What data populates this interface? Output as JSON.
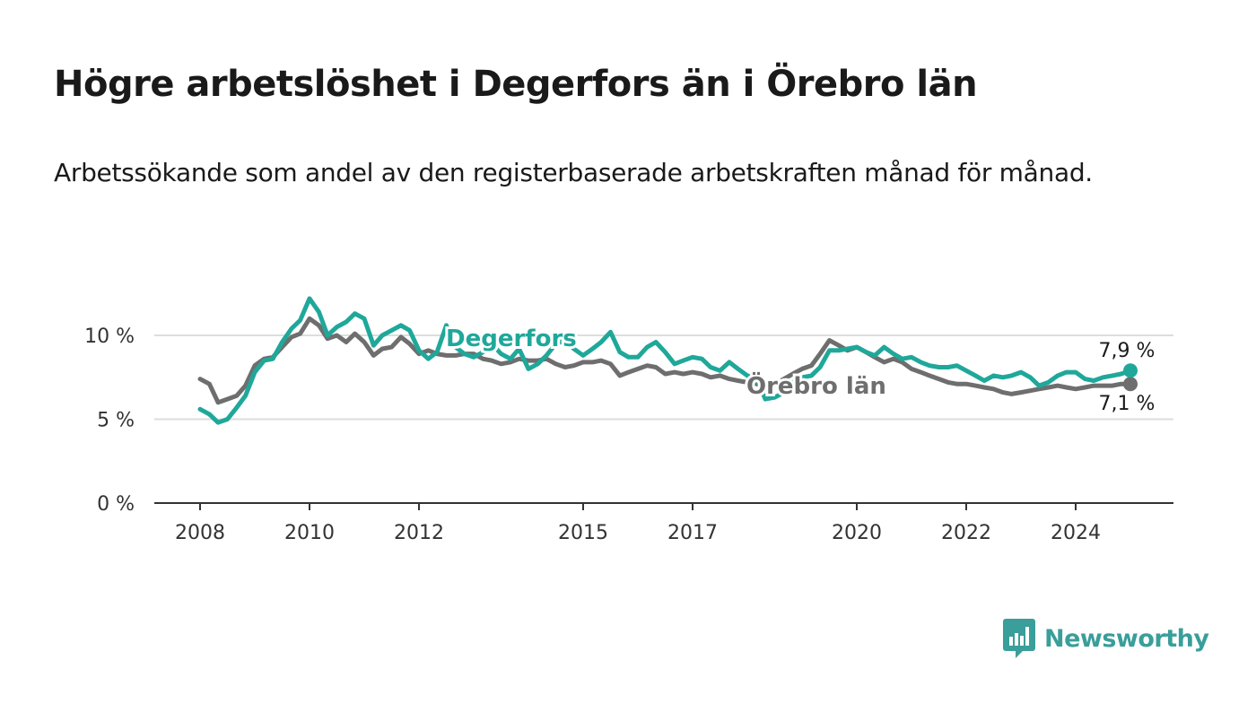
{
  "title": "Högre arbetslöshet i Degerfors än i Örebro län",
  "subtitle": "Arbetssökande som andel av den registerbaserade arbetskraften månad för månad.",
  "brand": {
    "name": "Newsworthy",
    "icon": "bar-chart-logo-icon",
    "color": "#3a9e9a"
  },
  "chart_data": {
    "type": "line",
    "title": "Högre arbetslöshet i Degerfors än i Örebro län",
    "xlabel": "",
    "ylabel": "",
    "ylim": [
      0,
      11
    ],
    "xlim": [
      2007.7,
      2026.5
    ],
    "yticks": [
      0,
      5,
      10
    ],
    "ytick_labels": [
      "0 %",
      "5 %",
      "10 %"
    ],
    "xticks": [
      2008,
      2010,
      2012,
      2015,
      2017,
      2020,
      2022,
      2024
    ],
    "xtick_labels": [
      "2008",
      "2010",
      "2012",
      "2015",
      "2017",
      "2020",
      "2022",
      "2024"
    ],
    "grid": true,
    "series": [
      {
        "name": "Örebro län",
        "color": "#6e6e6e",
        "end_label": "7,1 %",
        "x": [
          2008.0,
          2008.17,
          2008.33,
          2008.5,
          2008.67,
          2008.83,
          2009.0,
          2009.17,
          2009.33,
          2009.5,
          2009.67,
          2009.83,
          2010.0,
          2010.17,
          2010.33,
          2010.5,
          2010.67,
          2010.83,
          2011.0,
          2011.17,
          2011.33,
          2011.5,
          2011.67,
          2011.83,
          2012.0,
          2012.17,
          2012.33,
          2012.5,
          2012.67,
          2012.83,
          2013.0,
          2013.17,
          2013.33,
          2013.5,
          2013.67,
          2013.83,
          2014.0,
          2014.17,
          2014.33,
          2014.5,
          2014.67,
          2014.83,
          2015.0,
          2015.17,
          2015.33,
          2015.5,
          2015.67,
          2015.83,
          2016.0,
          2016.17,
          2016.33,
          2016.5,
          2016.67,
          2016.83,
          2017.0,
          2017.17,
          2017.33,
          2017.5,
          2017.67,
          2017.83,
          2018.0,
          2018.17,
          2018.33,
          2018.5,
          2018.67,
          2018.83,
          2019.0,
          2019.17,
          2019.33,
          2019.5,
          2019.67,
          2019.83,
          2020.0,
          2020.17,
          2020.33,
          2020.5,
          2020.67,
          2020.83,
          2021.0,
          2021.17,
          2021.33,
          2021.5,
          2021.67,
          2021.83,
          2022.0,
          2022.17,
          2022.33,
          2022.5,
          2022.67,
          2022.83,
          2023.0,
          2023.17,
          2023.33,
          2023.5,
          2023.67,
          2023.83,
          2024.0,
          2024.17,
          2024.33,
          2024.5,
          2024.67,
          2024.83,
          2025.0
        ],
        "values": [
          7.4,
          7.1,
          6.0,
          6.2,
          6.4,
          7.0,
          8.2,
          8.6,
          8.7,
          9.3,
          9.9,
          10.1,
          11.0,
          10.6,
          9.8,
          10.0,
          9.6,
          10.1,
          9.6,
          8.8,
          9.2,
          9.3,
          9.9,
          9.5,
          8.9,
          9.1,
          8.9,
          8.8,
          8.8,
          8.9,
          8.9,
          8.6,
          8.5,
          8.3,
          8.4,
          8.6,
          8.5,
          8.5,
          8.6,
          8.3,
          8.1,
          8.2,
          8.4,
          8.4,
          8.5,
          8.3,
          7.6,
          7.8,
          8.0,
          8.2,
          8.1,
          7.7,
          7.8,
          7.7,
          7.8,
          7.7,
          7.5,
          7.6,
          7.4,
          7.3,
          7.2,
          7.1,
          7.0,
          7.1,
          7.4,
          7.7,
          8.0,
          8.2,
          8.9,
          9.7,
          9.4,
          9.1,
          9.3,
          9.0,
          8.7,
          8.4,
          8.6,
          8.4,
          8.0,
          7.8,
          7.6,
          7.4,
          7.2,
          7.1,
          7.1,
          7.0,
          6.9,
          6.8,
          6.6,
          6.5,
          6.6,
          6.7,
          6.8,
          6.9,
          7.0,
          6.9,
          6.8,
          6.9,
          7.0,
          7.0,
          7.0,
          7.1,
          7.1
        ]
      },
      {
        "name": "Degerfors",
        "color": "#1fa89a",
        "end_label": "7,9 %",
        "x": [
          2008.0,
          2008.17,
          2008.33,
          2008.5,
          2008.67,
          2008.83,
          2009.0,
          2009.17,
          2009.33,
          2009.5,
          2009.67,
          2009.83,
          2010.0,
          2010.17,
          2010.33,
          2010.5,
          2010.67,
          2010.83,
          2011.0,
          2011.17,
          2011.33,
          2011.5,
          2011.67,
          2011.83,
          2012.0,
          2012.17,
          2012.33,
          2012.5,
          2012.67,
          2012.83,
          2013.0,
          2013.17,
          2013.33,
          2013.5,
          2013.67,
          2013.83,
          2014.0,
          2014.17,
          2014.33,
          2014.5,
          2014.67,
          2014.83,
          2015.0,
          2015.17,
          2015.33,
          2015.5,
          2015.67,
          2015.83,
          2016.0,
          2016.17,
          2016.33,
          2016.5,
          2016.67,
          2016.83,
          2017.0,
          2017.17,
          2017.33,
          2017.5,
          2017.67,
          2017.83,
          2018.0,
          2018.17,
          2018.33,
          2018.5,
          2018.67,
          2018.83,
          2019.0,
          2019.17,
          2019.33,
          2019.5,
          2019.67,
          2019.83,
          2020.0,
          2020.17,
          2020.33,
          2020.5,
          2020.67,
          2020.83,
          2021.0,
          2021.17,
          2021.33,
          2021.5,
          2021.67,
          2021.83,
          2022.0,
          2022.17,
          2022.33,
          2022.5,
          2022.67,
          2022.83,
          2023.0,
          2023.17,
          2023.33,
          2023.5,
          2023.67,
          2023.83,
          2024.0,
          2024.17,
          2024.33,
          2024.5,
          2024.67,
          2024.83,
          2025.0
        ],
        "values": [
          5.6,
          5.3,
          4.8,
          5.0,
          5.7,
          6.4,
          7.8,
          8.5,
          8.6,
          9.6,
          10.4,
          10.9,
          12.2,
          11.4,
          10.0,
          10.5,
          10.8,
          11.3,
          11.0,
          9.4,
          10.0,
          10.3,
          10.6,
          10.3,
          9.1,
          8.6,
          9.0,
          10.6,
          9.3,
          8.9,
          8.7,
          9.0,
          9.5,
          8.9,
          8.6,
          9.2,
          8.0,
          8.3,
          8.8,
          9.5,
          9.7,
          9.2,
          8.8,
          9.2,
          9.6,
          10.2,
          9.0,
          8.7,
          8.7,
          9.3,
          9.6,
          9.0,
          8.3,
          8.5,
          8.7,
          8.6,
          8.1,
          7.9,
          8.4,
          8.0,
          7.6,
          7.4,
          6.2,
          6.3,
          6.6,
          7.2,
          7.5,
          7.6,
          8.1,
          9.1,
          9.1,
          9.2,
          9.3,
          9.0,
          8.8,
          9.3,
          8.9,
          8.6,
          8.7,
          8.4,
          8.2,
          8.1,
          8.1,
          8.2,
          7.9,
          7.6,
          7.3,
          7.6,
          7.5,
          7.6,
          7.8,
          7.5,
          7.0,
          7.2,
          7.6,
          7.8,
          7.8,
          7.4,
          7.3,
          7.5,
          7.6,
          7.7,
          7.9
        ]
      }
    ]
  }
}
